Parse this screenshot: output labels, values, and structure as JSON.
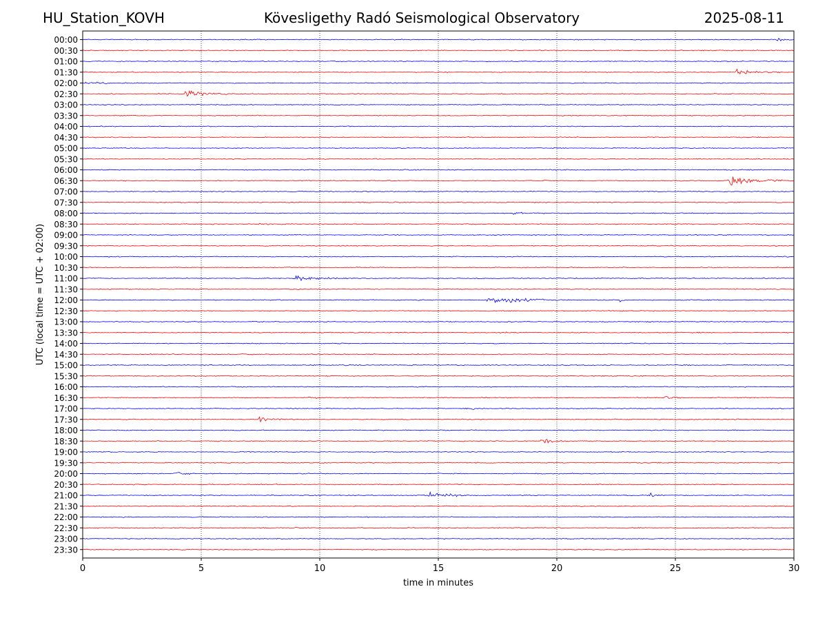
{
  "header": {
    "station": "HU_Station_KOVH",
    "title": "Kövesligethy Radó Seismological Observatory",
    "date": "2025-08-11"
  },
  "chart_data": {
    "type": "line",
    "subtype": "helicorder",
    "xlabel": "time in minutes",
    "ylabel": "UTC (local time = UTC + 02:00)",
    "xlim": [
      0,
      30
    ],
    "x_ticks": [
      0,
      5,
      10,
      15,
      20,
      25,
      30
    ],
    "x_tick_labels": [
      "0",
      "5",
      "10",
      "15",
      "20",
      "25",
      "30"
    ],
    "vertical_grid": true,
    "colors": {
      "even_rows": "#0000ff",
      "odd_rows": "#ff0000"
    },
    "rows": [
      "00:00",
      "00:30",
      "01:00",
      "01:30",
      "02:00",
      "02:30",
      "03:00",
      "03:30",
      "04:00",
      "04:30",
      "05:00",
      "05:30",
      "06:00",
      "06:30",
      "07:00",
      "07:30",
      "08:00",
      "08:30",
      "09:00",
      "09:30",
      "10:00",
      "10:30",
      "11:00",
      "11:30",
      "12:00",
      "12:30",
      "13:00",
      "13:30",
      "14:00",
      "14:30",
      "15:00",
      "15:30",
      "16:00",
      "16:30",
      "17:00",
      "17:30",
      "18:00",
      "18:30",
      "19:00",
      "19:30",
      "20:00",
      "20:30",
      "21:00",
      "21:30",
      "22:00",
      "22:30",
      "23:00",
      "23:30"
    ],
    "events": [
      {
        "row": "00:00",
        "minute": 29.3,
        "duration": 0.3,
        "amplitude": 7
      },
      {
        "row": "00:30",
        "minute": 18.1,
        "duration": 0.2,
        "amplitude": 3
      },
      {
        "row": "01:00",
        "minute": 2.6,
        "duration": 0.8,
        "amplitude": 2
      },
      {
        "row": "01:30",
        "minute": 27.6,
        "duration": 1.8,
        "amplitude": 6
      },
      {
        "row": "02:00",
        "minute": 0.0,
        "duration": 2.0,
        "amplitude": 4
      },
      {
        "row": "02:30",
        "minute": 4.35,
        "duration": 1.8,
        "amplitude": 14
      },
      {
        "row": "06:30",
        "minute": 27.25,
        "duration": 2.5,
        "amplitude": 17
      },
      {
        "row": "08:00",
        "minute": 18.2,
        "duration": 0.9,
        "amplitude": 4
      },
      {
        "row": "08:30",
        "minute": 7.4,
        "duration": 0.6,
        "amplitude": 4
      },
      {
        "row": "11:00",
        "minute": 9.0,
        "duration": 2.5,
        "amplitude": 6
      },
      {
        "row": "12:00",
        "minute": 17.1,
        "duration": 3.5,
        "amplitude": 11
      },
      {
        "row": "12:00",
        "minute": 22.7,
        "duration": 0.5,
        "amplitude": 4
      },
      {
        "row": "16:30",
        "minute": 9.4,
        "duration": 1.0,
        "amplitude": 3
      },
      {
        "row": "16:30",
        "minute": 24.6,
        "duration": 1.0,
        "amplitude": 3
      },
      {
        "row": "17:00",
        "minute": 16.1,
        "duration": 1.0,
        "amplitude": 3
      },
      {
        "row": "17:30",
        "minute": 7.5,
        "duration": 1.5,
        "amplitude": 6
      },
      {
        "row": "18:30",
        "minute": 19.35,
        "duration": 1.3,
        "amplitude": 7
      },
      {
        "row": "20:00",
        "minute": 3.9,
        "duration": 1.5,
        "amplitude": 5
      },
      {
        "row": "21:00",
        "minute": 14.6,
        "duration": 1.5,
        "amplitude": 12
      },
      {
        "row": "21:00",
        "minute": 24.0,
        "duration": 0.6,
        "amplitude": 4
      }
    ]
  }
}
